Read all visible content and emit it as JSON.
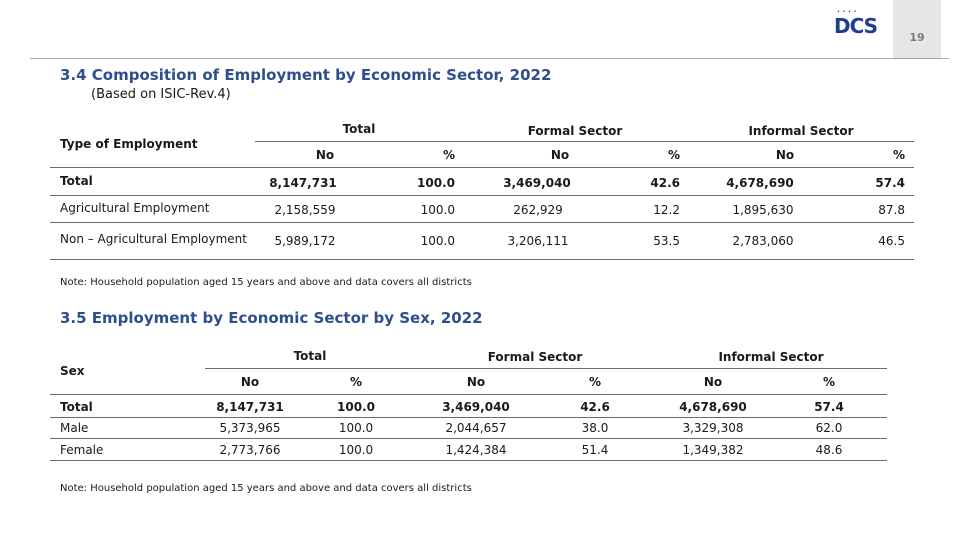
{
  "page_number": "19",
  "logo": {
    "text": "DCS",
    "dots": "• • • •"
  },
  "section1": {
    "title": "3.4 Composition of Employment by Economic Sector, 2022",
    "subtitle": "(Based on ISIC-Rev.4)",
    "row_header": "Type of Employment",
    "groups": [
      "Total",
      "Formal Sector",
      "Informal Sector"
    ],
    "subheaders": [
      "No",
      "%",
      "No",
      "%",
      "No",
      "%"
    ],
    "rows": [
      {
        "label": "Total",
        "values": [
          "8,147,731",
          "100.0",
          "3,469,040",
          "42.6",
          "4,678,690",
          "57.4"
        ]
      },
      {
        "label": "Agricultural Employment",
        "values": [
          "2,158,559",
          "100.0",
          "262,929",
          "12.2",
          "1,895,630",
          "87.8"
        ]
      },
      {
        "label": "Non – Agricultural Employment",
        "values": [
          "5,989,172",
          "100.0",
          "3,206,111",
          "53.5",
          "2,783,060",
          "46.5"
        ]
      }
    ],
    "note": "Note: Household population aged 15 years and above and data covers all districts"
  },
  "section2": {
    "title": "3.5 Employment by Economic Sector by Sex, 2022",
    "row_header": "Sex",
    "groups": [
      "Total",
      "Formal Sector",
      "Informal Sector"
    ],
    "subheaders": [
      "No",
      "%",
      "No",
      "%",
      "No",
      "%"
    ],
    "rows": [
      {
        "label": "Total",
        "values": [
          "8,147,731",
          "100.0",
          "3,469,040",
          "42.6",
          "4,678,690",
          "57.4"
        ]
      },
      {
        "label": "Male",
        "values": [
          "5,373,965",
          "100.0",
          "2,044,657",
          "38.0",
          "3,329,308",
          "62.0"
        ]
      },
      {
        "label": "Female",
        "values": [
          "2,773,766",
          "100.0",
          "1,424,384",
          "51.4",
          "1,349,382",
          "48.6"
        ]
      }
    ],
    "note": "Note: Household population aged 15 years and above and data covers all districts"
  }
}
